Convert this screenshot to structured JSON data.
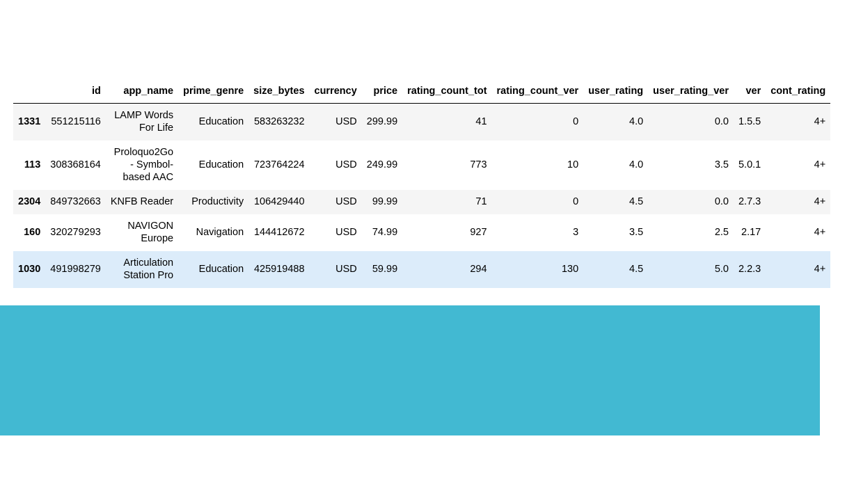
{
  "table": {
    "columns": [
      "",
      "id",
      "app_name",
      "prime_genre",
      "size_bytes",
      "currency",
      "price",
      "rating_count_tot",
      "rating_count_ver",
      "user_rating",
      "user_rating_ver",
      "ver",
      "cont_rating"
    ],
    "rows": [
      {
        "index": "1331",
        "id": "551215116",
        "app_name": "LAMP Words For Life",
        "prime_genre": "Education",
        "size_bytes": "583263232",
        "currency": "USD",
        "price": "299.99",
        "rating_count_tot": "41",
        "rating_count_ver": "0",
        "user_rating": "4.0",
        "user_rating_ver": "0.0",
        "ver": "1.5.5",
        "cont_rating": "4+"
      },
      {
        "index": "113",
        "id": "308368164",
        "app_name": "Proloquo2Go - Symbol-based AAC",
        "prime_genre": "Education",
        "size_bytes": "723764224",
        "currency": "USD",
        "price": "249.99",
        "rating_count_tot": "773",
        "rating_count_ver": "10",
        "user_rating": "4.0",
        "user_rating_ver": "3.5",
        "ver": "5.0.1",
        "cont_rating": "4+"
      },
      {
        "index": "2304",
        "id": "849732663",
        "app_name": "KNFB Reader",
        "prime_genre": "Productivity",
        "size_bytes": "106429440",
        "currency": "USD",
        "price": "99.99",
        "rating_count_tot": "71",
        "rating_count_ver": "0",
        "user_rating": "4.5",
        "user_rating_ver": "0.0",
        "ver": "2.7.3",
        "cont_rating": "4+"
      },
      {
        "index": "160",
        "id": "320279293",
        "app_name": "NAVIGON Europe",
        "prime_genre": "Navigation",
        "size_bytes": "144412672",
        "currency": "USD",
        "price": "74.99",
        "rating_count_tot": "927",
        "rating_count_ver": "3",
        "user_rating": "3.5",
        "user_rating_ver": "2.5",
        "ver": "2.17",
        "cont_rating": "4+"
      },
      {
        "index": "1030",
        "id": "491998279",
        "app_name": "Articulation Station Pro",
        "prime_genre": "Education",
        "size_bytes": "425919488",
        "currency": "USD",
        "price": "59.99",
        "rating_count_tot": "294",
        "rating_count_ver": "130",
        "user_rating": "4.5",
        "user_rating_ver": "5.0",
        "ver": "2.2.3",
        "cont_rating": "4+"
      }
    ],
    "hovered_row": 4
  },
  "colors": {
    "band": "#42b9d2",
    "row_hover": "#dcecfa",
    "row_stripe": "#f5f5f5"
  }
}
